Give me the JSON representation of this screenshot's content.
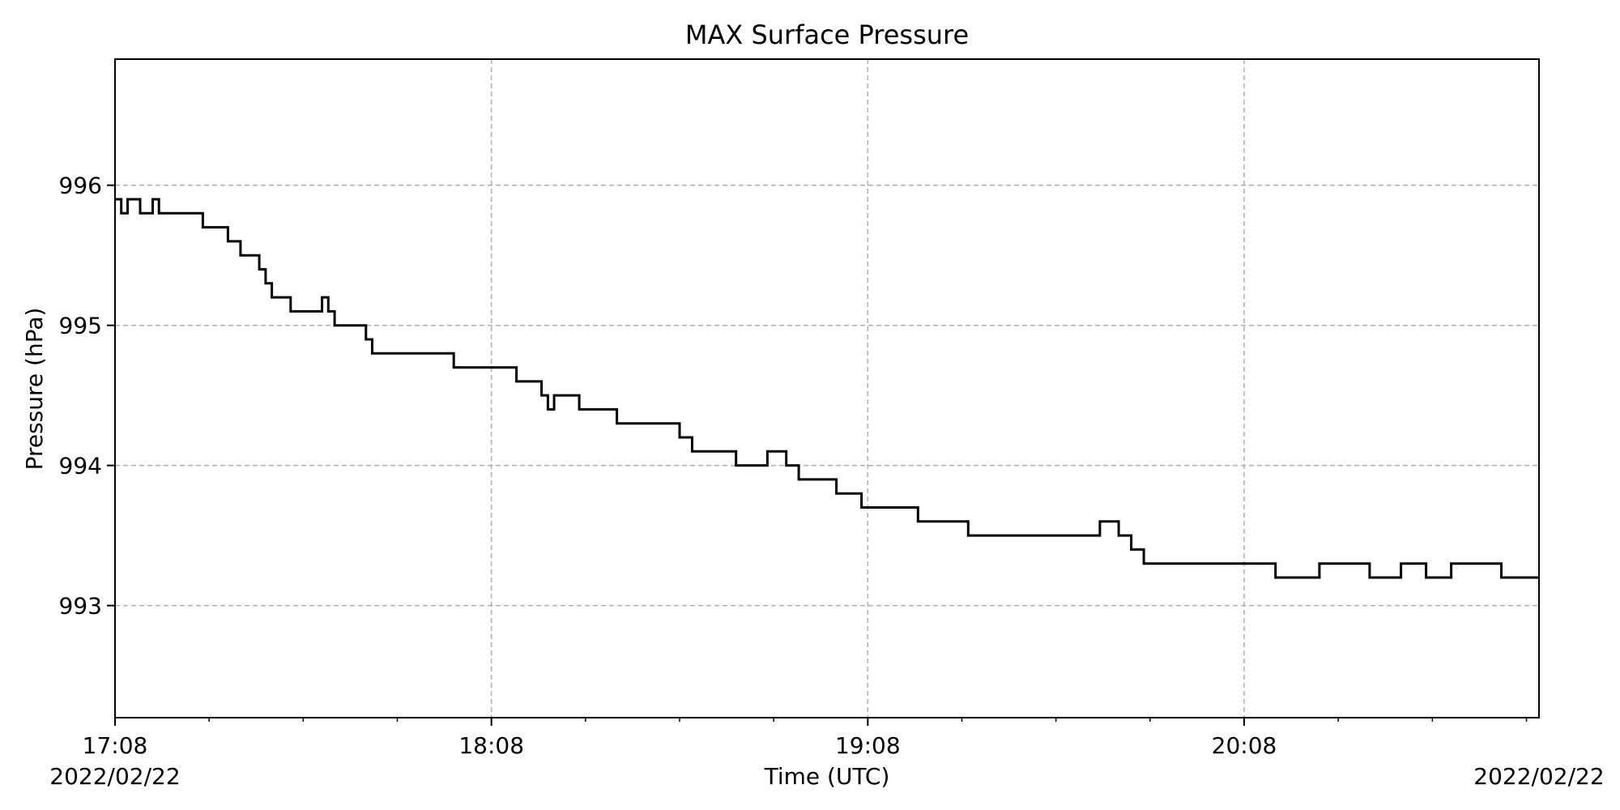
{
  "chart_data": {
    "type": "line",
    "title": "MAX Surface Pressure",
    "xlabel": "Time (UTC)",
    "ylabel": "Pressure (hPa)",
    "start_date": "2022/02/22",
    "end_date": "2022/02/22",
    "xlim": [
      "17:08",
      "20:55"
    ],
    "ylim": [
      992.2,
      996.9
    ],
    "x_ticks": [
      "17:08",
      "18:08",
      "19:08",
      "20:08"
    ],
    "y_ticks": [
      993,
      994,
      995,
      996
    ],
    "grid": true,
    "line_color": "#000000",
    "grid_color": "#b0b0b0",
    "series": [
      {
        "x": [
          "17:08",
          "17:09",
          "17:10",
          "17:12",
          "17:14",
          "17:15",
          "17:16",
          "17:17",
          "17:22",
          "17:23",
          "17:26",
          "17:28",
          "17:31",
          "17:32",
          "17:33",
          "17:34",
          "17:36",
          "17:38",
          "17:40",
          "17:41",
          "17:42",
          "17:43",
          "17:48",
          "17:49",
          "17:51",
          "17:55",
          "17:57",
          "17:58",
          "18:02",
          "18:03",
          "18:08",
          "18:12",
          "18:16",
          "18:17",
          "18:18",
          "18:19",
          "18:22",
          "18:28",
          "18:31",
          "18:32",
          "18:35",
          "18:38",
          "18:40",
          "18:43",
          "18:47",
          "18:52",
          "18:55",
          "18:57",
          "18:58",
          "19:03",
          "19:05",
          "19:06",
          "19:07",
          "19:10",
          "19:16",
          "19:24",
          "19:30",
          "19:34",
          "19:39",
          "19:45",
          "19:48",
          "19:50",
          "19:52",
          "19:53",
          "19:55",
          "20:13",
          "20:20",
          "20:28",
          "20:33",
          "20:37",
          "20:41",
          "20:49",
          "20:55"
        ],
        "y": [
          995.9,
          995.8,
          995.9,
          995.8,
          995.9,
          995.8,
          995.8,
          995.8,
          995.7,
          995.7,
          995.6,
          995.5,
          995.4,
          995.3,
          995.2,
          995.2,
          995.1,
          995.1,
          995.1,
          995.2,
          995.1,
          995.0,
          994.9,
          994.8,
          994.8,
          994.8,
          994.8,
          994.8,
          994.7,
          994.7,
          994.7,
          994.6,
          994.5,
          994.4,
          994.5,
          994.5,
          994.4,
          994.3,
          994.3,
          994.3,
          994.3,
          994.2,
          994.1,
          994.1,
          994.0,
          994.1,
          994.0,
          993.9,
          993.9,
          993.8,
          993.8,
          993.8,
          993.7,
          993.7,
          993.6,
          993.5,
          993.5,
          993.5,
          993.5,
          993.6,
          993.5,
          993.4,
          993.3,
          993.3,
          993.3,
          993.2,
          993.3,
          993.2,
          993.3,
          993.2,
          993.3,
          993.2,
          993.2
        ]
      }
    ]
  }
}
